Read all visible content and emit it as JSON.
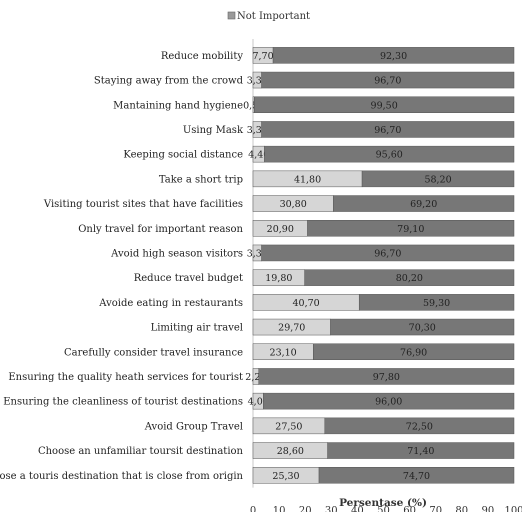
{
  "chart_data": {
    "type": "bar",
    "orientation": "horizontal",
    "stacked": true,
    "title": "",
    "xlabel": "Persentase (%)",
    "ylabel": "",
    "xlim": [
      0,
      100
    ],
    "x_ticks": [
      "0",
      "10",
      "20",
      "30",
      "40",
      "50",
      "60",
      "70",
      "80",
      "90",
      "100"
    ],
    "legend": {
      "position": "top",
      "entries": [
        {
          "label": "Not Important",
          "color": "#9a9a9a"
        }
      ]
    },
    "categories": [
      "Reduce mobility",
      "Staying away from the crowd",
      "Mantaining hand hygiene",
      "Using Mask",
      "Keeping social distance",
      "Take a short trip",
      "Visiting tourist sites that have facilities",
      "Only travel for important reason",
      "Avoid high season visitors",
      "Reduce travel budget",
      "Avoide eating in restaurants",
      "Limiting air travel",
      "Carefully consider travel insurance",
      "Ensuring the quality heath services for tourist",
      "Ensuring the cleanliness of tourist destinations",
      "Avoid Group Travel",
      "Choose an unfamiliar toursit destination",
      "Choose a touris destination that is close from origin"
    ],
    "series": [
      {
        "name": "Not Important",
        "color": "#d6d6d6",
        "values": [
          7.7,
          3.3,
          0.5,
          3.3,
          4.4,
          41.8,
          30.8,
          20.9,
          3.3,
          19.8,
          40.7,
          29.7,
          23.1,
          2.2,
          4.0,
          27.5,
          28.6,
          25.3
        ],
        "labels": [
          "7,70",
          "3,30",
          "0,50",
          "3,30",
          "4,40",
          "41,80",
          "30,80",
          "20,90",
          "3,30",
          "19,80",
          "40,70",
          "29,70",
          "23,10",
          "2,20",
          "4,00",
          "27,50",
          "28,60",
          "25,30"
        ]
      },
      {
        "color": "#777777",
        "values": [
          92.3,
          96.7,
          99.5,
          96.7,
          95.6,
          58.2,
          69.2,
          79.1,
          96.7,
          80.2,
          59.3,
          70.3,
          76.9,
          97.8,
          96.0,
          72.5,
          71.4,
          74.7
        ],
        "labels": [
          "92,30",
          "96,70",
          "99,50",
          "96,70",
          "95,60",
          "58,20",
          "69,20",
          "79,10",
          "96,70",
          "80,20",
          "59,30",
          "70,30",
          "76,90",
          "97,80",
          "96,00",
          "72,50",
          "71,40",
          "74,70"
        ]
      }
    ]
  }
}
